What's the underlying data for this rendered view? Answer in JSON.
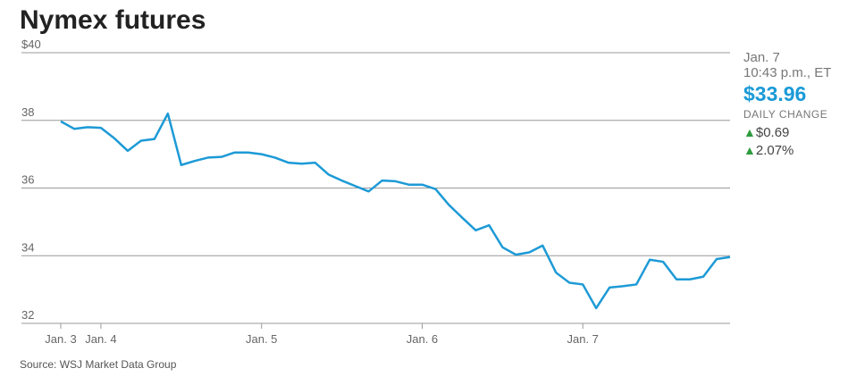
{
  "chart_data": {
    "type": "line",
    "title": "Nymex futures",
    "categories": [
      "Jan. 3",
      null,
      null,
      "Jan. 4",
      null,
      null,
      null,
      null,
      null,
      null,
      null,
      null,
      null,
      null,
      null,
      "Jan. 5",
      null,
      null,
      null,
      null,
      null,
      null,
      null,
      null,
      null,
      null,
      null,
      "Jan. 6",
      null,
      null,
      null,
      null,
      null,
      null,
      null,
      null,
      null,
      null,
      null,
      "Jan. 7",
      null,
      null,
      null,
      null,
      null,
      null,
      null,
      null,
      null,
      null,
      null
    ],
    "series": [
      {
        "name": "Nymex futures",
        "color": "#1d9ad6",
        "values": [
          37.97,
          37.75,
          37.8,
          37.78,
          37.47,
          37.1,
          37.4,
          37.45,
          38.2,
          36.68,
          36.8,
          36.9,
          36.92,
          37.05,
          37.05,
          37.0,
          36.9,
          36.75,
          36.72,
          36.75,
          36.4,
          36.22,
          36.06,
          35.9,
          36.22,
          36.2,
          36.1,
          36.1,
          35.97,
          35.5,
          35.12,
          34.75,
          34.9,
          34.25,
          34.03,
          34.1,
          34.3,
          33.5,
          33.2,
          33.15,
          32.45,
          33.06,
          33.1,
          33.15,
          33.88,
          33.82,
          33.3,
          33.3,
          33.38,
          33.9,
          33.96
        ]
      }
    ],
    "ylim": [
      32,
      40
    ],
    "yticks": [
      32,
      34,
      36,
      38,
      {
        "value": 40,
        "label": "$40"
      }
    ],
    "grid": true,
    "source": "Source: WSJ Market Data Group",
    "panel": {
      "date": "Jan. 7",
      "time": "10:43 p.m., ET",
      "price": "$33.96",
      "change_label": "DAILY CHANGE",
      "change": "$0.69",
      "change_pct": "2.07%"
    }
  }
}
